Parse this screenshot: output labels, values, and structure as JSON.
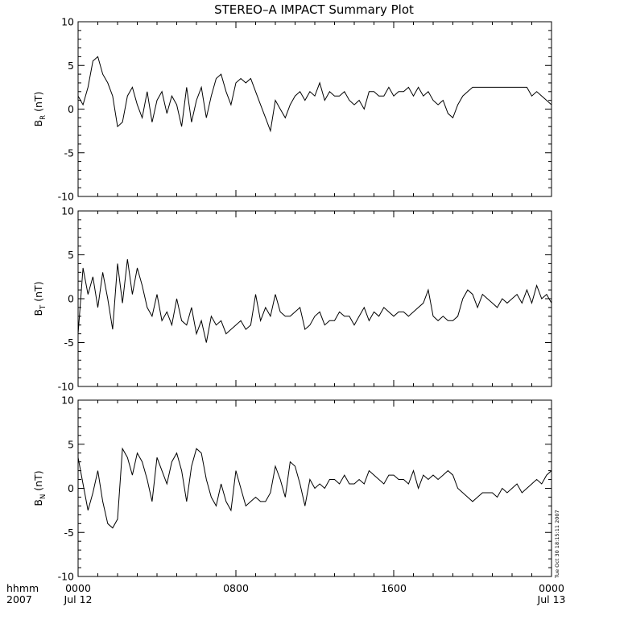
{
  "title": "STEREO–A IMPACT Summary Plot",
  "timestamp": "Tue Oct 30 18:15:11 2007",
  "x_axis": {
    "corner_label": [
      "hhmm",
      "2007"
    ],
    "ticks": [
      {
        "hours": 0,
        "label": "0000",
        "sublabel": "Jul 12"
      },
      {
        "hours": 8,
        "label": "0800",
        "sublabel": ""
      },
      {
        "hours": 16,
        "label": "1600",
        "sublabel": ""
      },
      {
        "hours": 24,
        "label": "0000",
        "sublabel": "Jul 13"
      }
    ]
  },
  "chart_data": [
    {
      "type": "line",
      "ylabel_main": "B",
      "ylabel_sub": "R",
      "ylabel_unit": " (nT)",
      "xlim_hours": [
        0,
        24
      ],
      "ylim": [
        -10,
        10
      ],
      "yticks": [
        -10,
        -5,
        0,
        5,
        10
      ],
      "grid": false,
      "x_hours": [
        0,
        0.25,
        0.5,
        0.75,
        1,
        1.25,
        1.5,
        1.75,
        2,
        2.25,
        2.5,
        2.75,
        3,
        3.25,
        3.5,
        3.75,
        4,
        4.25,
        4.5,
        4.75,
        5,
        5.25,
        5.5,
        5.75,
        6,
        6.25,
        6.5,
        6.75,
        7,
        7.25,
        7.5,
        7.75,
        8,
        8.25,
        8.5,
        8.75,
        9,
        9.25,
        9.5,
        9.75,
        10,
        10.25,
        10.5,
        10.75,
        11,
        11.25,
        11.5,
        11.75,
        12,
        12.25,
        12.5,
        12.75,
        13,
        13.25,
        13.5,
        13.75,
        14,
        14.25,
        14.5,
        14.75,
        15,
        15.25,
        15.5,
        15.75,
        16,
        16.25,
        16.5,
        16.75,
        17,
        17.25,
        17.5,
        17.75,
        18,
        18.25,
        18.5,
        18.75,
        19,
        19.25,
        19.5,
        19.75,
        20,
        20.25,
        20.5,
        20.75,
        21,
        21.25,
        21.5,
        21.75,
        22,
        22.25,
        22.5,
        22.75,
        23,
        23.25,
        23.5,
        23.75,
        24
      ],
      "values": [
        1.5,
        0.5,
        2.5,
        5.5,
        6.0,
        4.0,
        3.0,
        1.5,
        -2.0,
        -1.5,
        1.5,
        2.5,
        0.5,
        -1.0,
        2.0,
        -1.5,
        1.0,
        2.0,
        -0.5,
        1.5,
        0.5,
        -2.0,
        2.5,
        -1.5,
        1.0,
        2.5,
        -1.0,
        1.5,
        3.5,
        4.0,
        2.0,
        0.5,
        3.0,
        3.5,
        3.0,
        3.5,
        2.0,
        0.5,
        -1.0,
        -2.5,
        1.0,
        0.0,
        -1.0,
        0.5,
        1.5,
        2.0,
        1.0,
        2.0,
        1.5,
        3.0,
        1.0,
        2.0,
        1.5,
        1.5,
        2.0,
        1.0,
        0.5,
        1.0,
        0.0,
        2.0,
        2.0,
        1.5,
        1.5,
        2.5,
        1.5,
        2.0,
        2.0,
        2.5,
        1.5,
        2.5,
        1.5,
        2.0,
        1.0,
        0.5,
        1.0,
        -0.5,
        -1.0,
        0.5,
        1.5,
        2.0,
        2.5,
        2.5,
        2.5,
        2.5,
        2.5,
        2.5,
        2.5,
        2.5,
        2.5,
        2.5,
        2.5,
        2.5,
        1.5,
        2.0,
        1.5,
        1.0,
        0.5
      ]
    },
    {
      "type": "line",
      "ylabel_main": "B",
      "ylabel_sub": "T",
      "ylabel_unit": " (nT)",
      "xlim_hours": [
        0,
        24
      ],
      "ylim": [
        -10,
        10
      ],
      "yticks": [
        -10,
        -5,
        0,
        5,
        10
      ],
      "grid": false,
      "x_hours": [
        0,
        0.25,
        0.5,
        0.75,
        1,
        1.25,
        1.5,
        1.75,
        2,
        2.25,
        2.5,
        2.75,
        3,
        3.25,
        3.5,
        3.75,
        4,
        4.25,
        4.5,
        4.75,
        5,
        5.25,
        5.5,
        5.75,
        6,
        6.25,
        6.5,
        6.75,
        7,
        7.25,
        7.5,
        7.75,
        8,
        8.25,
        8.5,
        8.75,
        9,
        9.25,
        9.5,
        9.75,
        10,
        10.25,
        10.5,
        10.75,
        11,
        11.25,
        11.5,
        11.75,
        12,
        12.25,
        12.5,
        12.75,
        13,
        13.25,
        13.5,
        13.75,
        14,
        14.25,
        14.5,
        14.75,
        15,
        15.25,
        15.5,
        15.75,
        16,
        16.25,
        16.5,
        16.75,
        17,
        17.25,
        17.5,
        17.75,
        18,
        18.25,
        18.5,
        18.75,
        19,
        19.25,
        19.5,
        19.75,
        20,
        20.25,
        20.5,
        20.75,
        21,
        21.25,
        21.5,
        21.75,
        22,
        22.25,
        22.5,
        22.75,
        23,
        23.25,
        23.5,
        23.75,
        24
      ],
      "values": [
        -4.0,
        3.5,
        0.5,
        2.5,
        -1.0,
        3.0,
        0.0,
        -3.5,
        4.0,
        -0.5,
        4.5,
        0.5,
        3.5,
        1.5,
        -1.0,
        -2.0,
        0.5,
        -2.5,
        -1.5,
        -3.0,
        0.0,
        -2.5,
        -3.0,
        -1.0,
        -4.0,
        -2.5,
        -5.0,
        -2.0,
        -3.0,
        -2.5,
        -4.0,
        -3.5,
        -3.0,
        -2.5,
        -3.5,
        -3.0,
        0.5,
        -2.5,
        -1.0,
        -2.0,
        0.5,
        -1.5,
        -2.0,
        -2.0,
        -1.5,
        -1.0,
        -3.5,
        -3.0,
        -2.0,
        -1.5,
        -3.0,
        -2.5,
        -2.5,
        -1.5,
        -2.0,
        -2.0,
        -3.0,
        -2.0,
        -1.0,
        -2.5,
        -1.5,
        -2.0,
        -1.0,
        -1.5,
        -2.0,
        -1.5,
        -1.5,
        -2.0,
        -1.5,
        -1.0,
        -0.5,
        1.0,
        -2.0,
        -2.5,
        -2.0,
        -2.5,
        -2.5,
        -2.0,
        0.0,
        1.0,
        0.5,
        -1.0,
        0.5,
        0.0,
        -0.5,
        -1.0,
        0.0,
        -0.5,
        0.0,
        0.5,
        -0.5,
        1.0,
        -0.5,
        1.5,
        0.0,
        0.5,
        -0.5
      ]
    },
    {
      "type": "line",
      "ylabel_main": "B",
      "ylabel_sub": "N",
      "ylabel_unit": " (nT)",
      "xlim_hours": [
        0,
        24
      ],
      "ylim": [
        -10,
        10
      ],
      "yticks": [
        -10,
        -5,
        0,
        5,
        10
      ],
      "grid": false,
      "x_hours": [
        0,
        0.25,
        0.5,
        0.75,
        1,
        1.25,
        1.5,
        1.75,
        2,
        2.25,
        2.5,
        2.75,
        3,
        3.25,
        3.5,
        3.75,
        4,
        4.25,
        4.5,
        4.75,
        5,
        5.25,
        5.5,
        5.75,
        6,
        6.25,
        6.5,
        6.75,
        7,
        7.25,
        7.5,
        7.75,
        8,
        8.25,
        8.5,
        8.75,
        9,
        9.25,
        9.5,
        9.75,
        10,
        10.25,
        10.5,
        10.75,
        11,
        11.25,
        11.5,
        11.75,
        12,
        12.25,
        12.5,
        12.75,
        13,
        13.25,
        13.5,
        13.75,
        14,
        14.25,
        14.5,
        14.75,
        15,
        15.25,
        15.5,
        15.75,
        16,
        16.25,
        16.5,
        16.75,
        17,
        17.25,
        17.5,
        17.75,
        18,
        18.25,
        18.5,
        18.75,
        19,
        19.25,
        19.5,
        19.75,
        20,
        20.25,
        20.5,
        20.75,
        21,
        21.25,
        21.5,
        21.75,
        22,
        22.25,
        22.5,
        22.75,
        23,
        23.25,
        23.5,
        23.75,
        24
      ],
      "values": [
        3.5,
        0.5,
        -2.5,
        -0.5,
        2.0,
        -1.5,
        -4.0,
        -4.5,
        -3.5,
        4.5,
        3.5,
        1.5,
        4.0,
        3.0,
        1.0,
        -1.5,
        3.5,
        2.0,
        0.5,
        3.0,
        4.0,
        2.0,
        -1.5,
        2.5,
        4.5,
        4.0,
        1.0,
        -1.0,
        -2.0,
        0.5,
        -1.5,
        -2.5,
        2.0,
        0.0,
        -2.0,
        -1.5,
        -1.0,
        -1.5,
        -1.5,
        -0.5,
        2.5,
        1.0,
        -1.0,
        3.0,
        2.5,
        0.5,
        -2.0,
        1.0,
        0.0,
        0.5,
        0.0,
        1.0,
        1.0,
        0.5,
        1.5,
        0.5,
        0.5,
        1.0,
        0.5,
        2.0,
        1.5,
        1.0,
        0.5,
        1.5,
        1.5,
        1.0,
        1.0,
        0.5,
        2.0,
        0.0,
        1.5,
        1.0,
        1.5,
        1.0,
        1.5,
        2.0,
        1.5,
        0.0,
        -0.5,
        -1.0,
        -1.5,
        -1.0,
        -0.5,
        -0.5,
        -0.5,
        -1.0,
        0.0,
        -0.5,
        0.0,
        0.5,
        -0.5,
        0.0,
        0.5,
        1.0,
        0.5,
        1.5,
        2.0
      ]
    }
  ]
}
